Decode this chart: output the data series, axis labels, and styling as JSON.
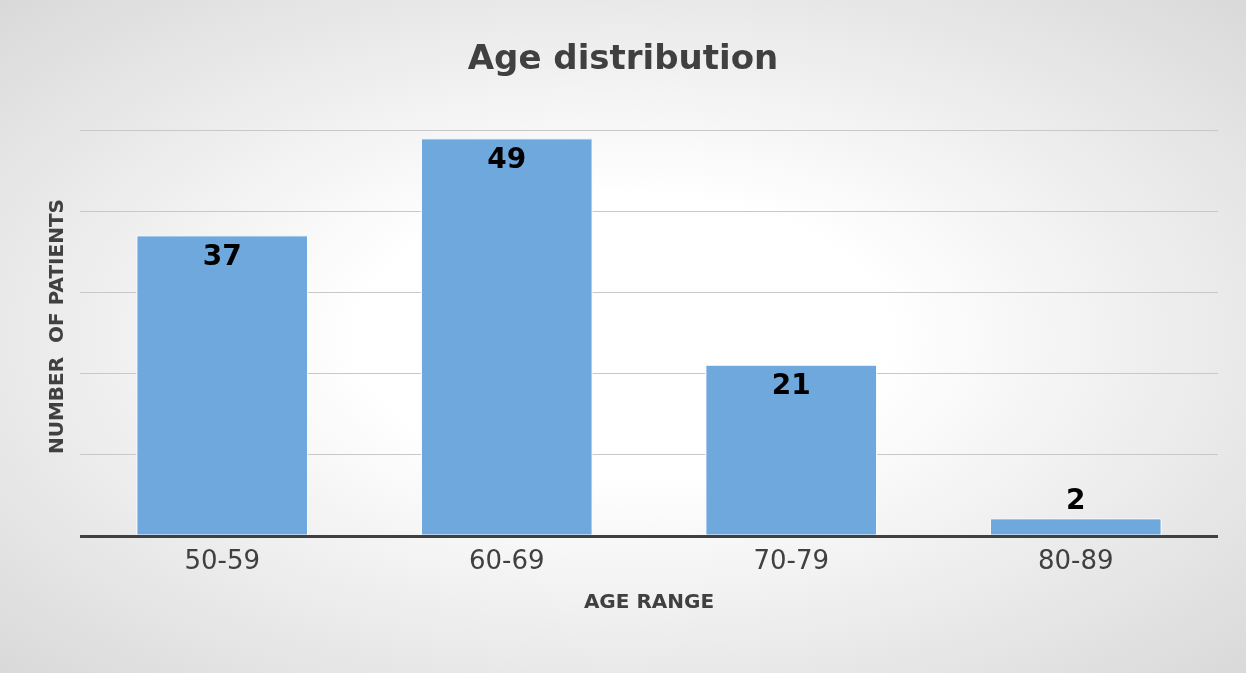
{
  "chart_data": {
    "type": "bar",
    "title": "Age distribution",
    "xlabel": "AGE RANGE",
    "ylabel": "NUMBER  OF PATIENTS",
    "categories": [
      "50-59",
      "60-69",
      "70-79",
      "80-89"
    ],
    "values": [
      37,
      49,
      21,
      2
    ],
    "color": "#6fa8dc",
    "grid": "y",
    "data_labels": true,
    "legend": false
  }
}
